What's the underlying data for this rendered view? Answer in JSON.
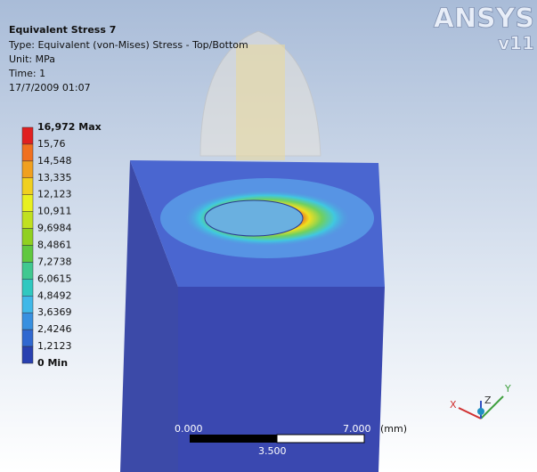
{
  "header": {
    "title": "Equivalent Stress 7",
    "lines": [
      "Type: Equivalent (von-Mises) Stress - Top/Bottom",
      "Unit: MPa",
      "Time: 1",
      "17/7/2009 01:07"
    ]
  },
  "logo": {
    "name": "ANSYS",
    "version": "v11"
  },
  "legend": {
    "labels": [
      "16,972 Max",
      "15,76",
      "14,548",
      "13,335",
      "12,123",
      "10,911",
      "9,6984",
      "8,4861",
      "7,2738",
      "6,0615",
      "4,8492",
      "3,6369",
      "2,4246",
      "1,2123",
      "0 Min"
    ]
  },
  "scale_bar": {
    "start": "0.000",
    "end": "7.000",
    "unit": "(mm)",
    "middle": "3.500"
  },
  "triad": {
    "x": "X",
    "y": "Y",
    "z": "Z"
  }
}
